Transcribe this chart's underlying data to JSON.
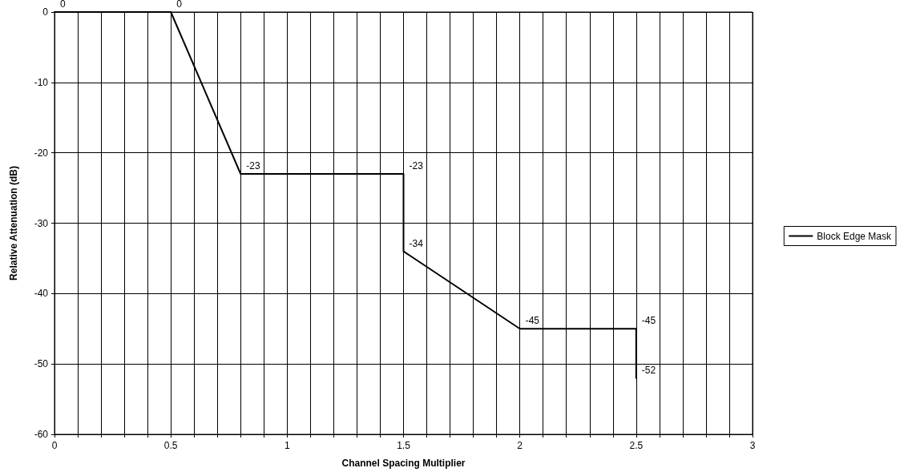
{
  "chart_data": {
    "type": "line",
    "xlabel": "Channel Spacing Multiplier",
    "ylabel": "Relative Attenuation (dB)",
    "series": [
      {
        "name": "Block Edge Mask",
        "color": "#000000",
        "x": [
          0,
          0.5,
          0.8,
          1.5,
          1.5,
          2,
          2.5,
          2.5
        ],
        "values": [
          0,
          0,
          -23,
          -23,
          -34,
          -45,
          -45,
          -52
        ]
      }
    ],
    "xlim": [
      0,
      3
    ],
    "xticks": [
      0,
      {
        "value": 0.1,
        "label": null
      },
      {
        "value": 0.2,
        "label": null
      },
      {
        "value": 0.3,
        "label": null
      },
      {
        "value": 0.4,
        "label": null
      },
      0.5,
      {
        "value": 0.6,
        "label": null
      },
      {
        "value": 0.7,
        "label": null
      },
      {
        "value": 0.8,
        "label": null
      },
      {
        "value": 0.9,
        "label": null
      },
      1,
      {
        "value": 1.1,
        "label": null
      },
      {
        "value": 1.2,
        "label": null
      },
      {
        "value": 1.3,
        "label": null
      },
      {
        "value": 1.4,
        "label": null
      },
      1.5,
      {
        "value": 1.6,
        "label": null
      },
      {
        "value": 1.7,
        "label": null
      },
      {
        "value": 1.8,
        "label": null
      },
      {
        "value": 1.9,
        "label": null
      },
      2,
      {
        "value": 2.1,
        "label": null
      },
      {
        "value": 2.2,
        "label": null
      },
      {
        "value": 2.3,
        "label": null
      },
      {
        "value": 2.4,
        "label": null
      },
      2.5,
      {
        "value": 2.6,
        "label": null
      },
      {
        "value": 2.7,
        "label": null
      },
      {
        "value": 2.8,
        "label": null
      },
      {
        "value": 2.9,
        "label": null
      },
      3
    ],
    "ylim": [
      -60,
      0
    ],
    "yticks": [
      -60,
      -50,
      -40,
      -30,
      -20,
      -10,
      0
    ],
    "grid": true,
    "legend": "right",
    "marker": "none",
    "line_style": "solid",
    "data_labels": true
  }
}
